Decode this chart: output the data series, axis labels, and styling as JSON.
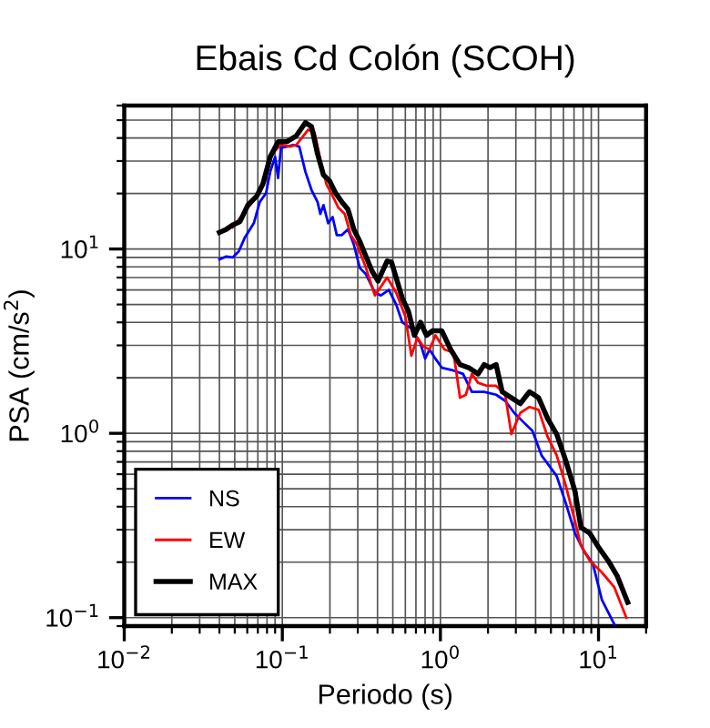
{
  "chart_data": {
    "type": "line",
    "title": "Ebais Cd Colón (SCOH)",
    "xlabel": "Periodo (s)",
    "ylabel": "PSA (cm/s$^{2}$)",
    "log": "xy",
    "grid": true,
    "legend": "bottom left",
    "line_style": "solid",
    "marker": "none",
    "xlim": [
      0.01,
      20
    ],
    "ylim": [
      0.09,
      60
    ],
    "xticks": [
      {
        "value": 0.01,
        "label": "10$^{−2}$"
      },
      {
        "value": 0.1,
        "label": "10$^{−1}$"
      },
      {
        "value": 1,
        "label": "10$^{0}$"
      },
      {
        "value": 10,
        "label": "10$^{1}$"
      }
    ],
    "yticks": [
      {
        "value": 0.1,
        "label": "10$^{−1}$"
      },
      {
        "value": 1,
        "label": "10$^{0}$"
      },
      {
        "value": 10,
        "label": "10$^{1}$"
      }
    ],
    "series": [
      {
        "name": "NS",
        "color": "#0000ff",
        "x": [
          0.04,
          0.0443,
          0.0485,
          0.053,
          0.0578,
          0.066,
          0.072,
          0.0789,
          0.0838,
          0.09,
          0.094,
          0.098,
          0.107,
          0.117,
          0.128,
          0.14,
          0.153,
          0.167,
          0.174,
          0.182,
          0.195,
          0.208,
          0.221,
          0.238,
          0.26,
          0.283,
          0.309,
          0.338,
          0.385,
          0.42,
          0.472,
          0.525,
          0.574,
          0.655,
          0.748,
          0.8,
          0.853,
          0.93,
          1.02,
          1.21,
          1.39,
          1.58,
          1.89,
          2.25,
          2.57,
          2.93,
          3.35,
          3.82,
          4.36,
          5.44,
          6.21,
          7.1,
          8.1,
          9.2,
          10.5,
          12.6
        ],
        "values": [
          8.8,
          9.1,
          9.0,
          9.7,
          11.5,
          13.8,
          18.0,
          20.1,
          26.2,
          31.6,
          24.3,
          35.4,
          35.9,
          36.7,
          35.9,
          26.2,
          20.9,
          18.0,
          15.5,
          17.3,
          13.8,
          14.9,
          11.9,
          11.9,
          12.8,
          10.6,
          7.9,
          7.3,
          5.8,
          5.6,
          6.0,
          5.0,
          4.0,
          3.7,
          3.07,
          2.54,
          2.85,
          2.54,
          2.27,
          2.19,
          2.1,
          1.68,
          1.68,
          1.62,
          1.5,
          1.29,
          1.15,
          1.03,
          0.76,
          0.586,
          0.418,
          0.287,
          0.229,
          0.197,
          0.125,
          0.092
        ]
      },
      {
        "name": "EW",
        "color": "#ff0000",
        "x": [
          0.0485,
          0.0605,
          0.072,
          0.0789,
          0.0861,
          0.098,
          0.112,
          0.1225,
          0.134,
          0.146,
          0.16,
          0.174,
          0.19,
          0.208,
          0.227,
          0.248,
          0.271,
          0.296,
          0.338,
          0.385,
          0.46,
          0.525,
          0.6,
          0.655,
          0.715,
          0.78,
          0.853,
          0.93,
          1.06,
          1.21,
          1.33,
          1.45,
          1.58,
          1.73,
          1.97,
          2.25,
          2.57,
          2.81,
          3.2,
          3.66,
          4.18,
          4.77,
          5.44,
          6.21,
          7.1,
          7.74,
          8.8,
          10.5,
          12.6,
          15.0
        ],
        "values": [
          13.1,
          16.7,
          20.1,
          24.3,
          32.8,
          36.7,
          35.9,
          36.7,
          40.5,
          44.4,
          42.8,
          30.5,
          22.5,
          19.4,
          16.7,
          15.5,
          11.9,
          10.6,
          7.9,
          5.6,
          7.0,
          5.8,
          4.3,
          2.64,
          3.3,
          2.96,
          2.85,
          3.4,
          2.85,
          2.74,
          1.56,
          1.62,
          2.1,
          1.88,
          1.81,
          1.81,
          1.62,
          0.99,
          1.29,
          1.39,
          1.34,
          0.955,
          0.76,
          0.52,
          0.333,
          0.247,
          0.204,
          0.176,
          0.146,
          0.1
        ]
      },
      {
        "name": "MAX",
        "color": "#000000",
        "x": [
          0.04,
          0.0443,
          0.0485,
          0.054,
          0.0605,
          0.069,
          0.0753,
          0.0838,
          0.094,
          0.107,
          0.1225,
          0.14,
          0.153,
          0.167,
          0.182,
          0.199,
          0.217,
          0.238,
          0.26,
          0.283,
          0.309,
          0.338,
          0.369,
          0.403,
          0.46,
          0.49,
          0.574,
          0.627,
          0.684,
          0.748,
          0.817,
          0.891,
          1.02,
          1.16,
          1.33,
          1.51,
          1.73,
          1.89,
          2.06,
          2.25,
          2.46,
          2.81,
          3.2,
          3.66,
          4.18,
          4.77,
          5.44,
          6.21,
          7.1,
          7.74,
          8.8,
          10.1,
          11.5,
          13.1,
          15.3
        ],
        "values": [
          12.3,
          12.8,
          13.5,
          14.1,
          17.3,
          19.4,
          22.5,
          31.6,
          38.2,
          38.2,
          41.1,
          48.5,
          46.1,
          32.8,
          25.2,
          23.4,
          20.1,
          18.0,
          16.4,
          12.8,
          11.0,
          9.1,
          7.6,
          6.7,
          8.6,
          8.5,
          5.4,
          4.6,
          3.4,
          4.0,
          3.4,
          3.6,
          3.6,
          2.85,
          2.36,
          2.27,
          2.1,
          2.36,
          2.27,
          2.36,
          1.68,
          1.56,
          1.45,
          1.68,
          1.56,
          1.2,
          0.99,
          0.71,
          0.485,
          0.309,
          0.287,
          0.238,
          0.204,
          0.169,
          0.121
        ]
      }
    ]
  }
}
